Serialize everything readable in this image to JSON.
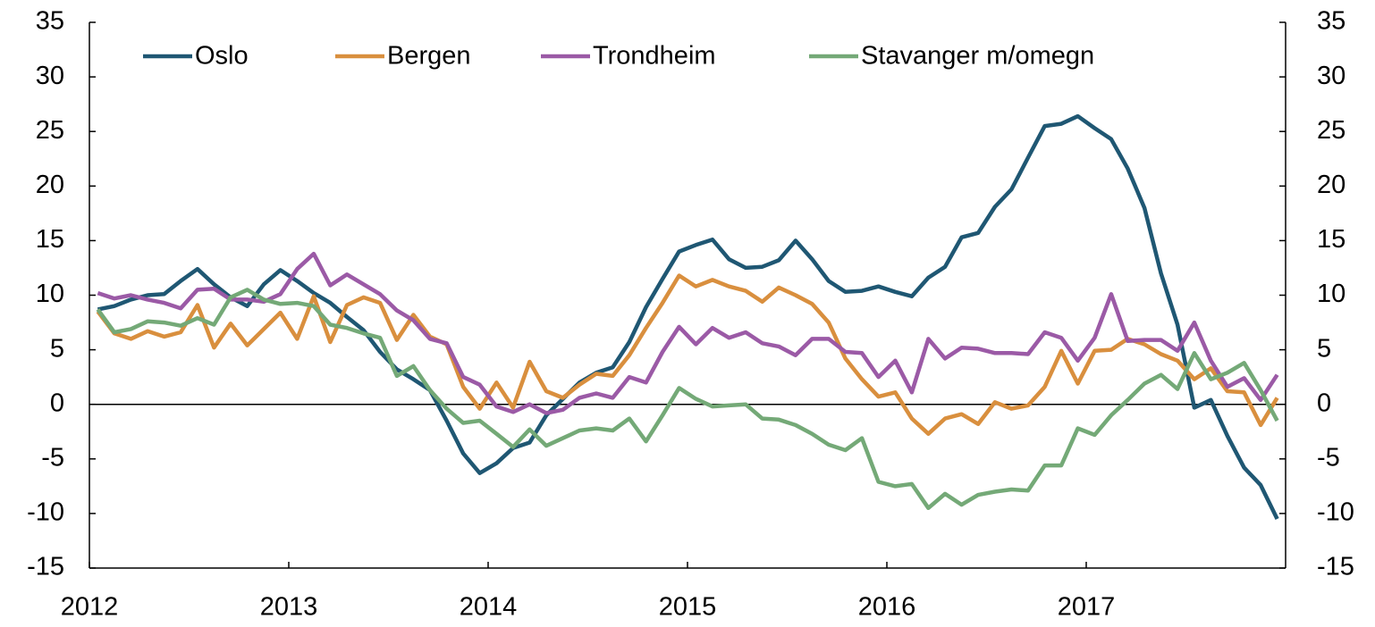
{
  "chart_data": {
    "type": "line",
    "x": [
      2012.042,
      2012.125,
      2012.208,
      2012.292,
      2012.375,
      2012.458,
      2012.542,
      2012.625,
      2012.708,
      2012.792,
      2012.875,
      2012.958,
      2013.042,
      2013.125,
      2013.208,
      2013.292,
      2013.375,
      2013.458,
      2013.542,
      2013.625,
      2013.708,
      2013.792,
      2013.875,
      2013.958,
      2014.042,
      2014.125,
      2014.208,
      2014.292,
      2014.375,
      2014.458,
      2014.542,
      2014.625,
      2014.708,
      2014.792,
      2014.875,
      2014.958,
      2015.042,
      2015.125,
      2015.208,
      2015.292,
      2015.375,
      2015.458,
      2015.542,
      2015.625,
      2015.708,
      2015.792,
      2015.875,
      2015.958,
      2016.042,
      2016.125,
      2016.208,
      2016.292,
      2016.375,
      2016.458,
      2016.542,
      2016.625,
      2016.708,
      2016.792,
      2016.875,
      2016.958,
      2017.042,
      2017.125,
      2017.208,
      2017.292,
      2017.375,
      2017.458,
      2017.542,
      2017.625,
      2017.708,
      2017.792,
      2017.875,
      2017.958
    ],
    "series": [
      {
        "name": "Oslo",
        "color": "#1f5773",
        "values": [
          8.7,
          9.0,
          9.6,
          10.0,
          10.1,
          11.3,
          12.4,
          11.0,
          9.8,
          9.0,
          11.0,
          12.3,
          11.3,
          10.2,
          9.3,
          8.0,
          6.8,
          4.8,
          3.2,
          2.3,
          1.3,
          -1.5,
          -4.5,
          -6.3,
          -5.4,
          -4.0,
          -3.5,
          -1.0,
          0.5,
          2.0,
          2.9,
          3.4,
          5.7,
          8.9,
          11.5,
          14.0,
          14.6,
          15.1,
          13.3,
          12.5,
          12.6,
          13.2,
          15.0,
          13.3,
          11.3,
          10.3,
          10.4,
          10.8,
          10.3,
          9.9,
          11.6,
          12.6,
          15.3,
          15.7,
          18.1,
          19.7,
          22.6,
          25.5,
          25.7,
          26.4,
          25.3,
          24.3,
          21.6,
          18.0,
          12.0,
          7.3,
          -0.3,
          0.4,
          -2.9,
          -5.8,
          -7.4,
          -10.5
        ]
      },
      {
        "name": "Bergen",
        "color": "#d98f3e",
        "values": [
          8.5,
          6.5,
          6.0,
          6.7,
          6.2,
          6.6,
          9.1,
          5.2,
          7.4,
          5.4,
          6.9,
          8.4,
          6.0,
          9.9,
          5.7,
          9.1,
          9.8,
          9.3,
          5.9,
          8.2,
          6.2,
          5.5,
          1.6,
          -0.4,
          2.0,
          -0.3,
          3.9,
          1.2,
          0.6,
          1.8,
          2.8,
          2.6,
          4.5,
          7.0,
          9.3,
          11.8,
          10.8,
          11.4,
          10.8,
          10.4,
          9.4,
          10.7,
          10.0,
          9.2,
          7.5,
          4.2,
          2.3,
          0.7,
          1.1,
          -1.3,
          -2.7,
          -1.3,
          -0.9,
          -1.8,
          0.2,
          -0.4,
          -0.1,
          1.6,
          4.9,
          1.9,
          4.9,
          5.0,
          6.0,
          5.5,
          4.6,
          4.0,
          2.3,
          3.3,
          1.2,
          1.1,
          -1.9,
          0.6
        ]
      },
      {
        "name": "Trondheim",
        "color": "#9b5aa6",
        "values": [
          10.2,
          9.7,
          10.0,
          9.6,
          9.3,
          8.8,
          10.5,
          10.6,
          9.6,
          9.6,
          9.4,
          10.1,
          12.4,
          13.8,
          10.9,
          11.9,
          11.0,
          10.1,
          8.6,
          7.7,
          6.0,
          5.6,
          2.5,
          1.8,
          -0.2,
          -0.7,
          0.0,
          -0.8,
          -0.5,
          0.6,
          1.0,
          0.6,
          2.5,
          2.0,
          4.8,
          7.1,
          5.5,
          7.0,
          6.1,
          6.6,
          5.6,
          5.3,
          4.5,
          6.0,
          6.0,
          4.8,
          4.7,
          2.5,
          4.0,
          1.1,
          6.0,
          4.2,
          5.2,
          5.1,
          4.7,
          4.7,
          4.6,
          6.6,
          6.1,
          4.0,
          6.1,
          10.1,
          5.8,
          5.9,
          5.9,
          4.9,
          7.5,
          4.0,
          1.6,
          2.4,
          0.4,
          2.7
        ]
      },
      {
        "name": "Stavanger m/omegn",
        "color": "#74a977",
        "values": [
          8.7,
          6.6,
          6.9,
          7.6,
          7.5,
          7.2,
          7.9,
          7.3,
          9.8,
          10.5,
          9.6,
          9.2,
          9.3,
          9.0,
          7.3,
          7.0,
          6.5,
          6.1,
          2.6,
          3.5,
          1.3,
          -0.4,
          -1.7,
          -1.5,
          -2.7,
          -3.9,
          -2.3,
          -3.8,
          -3.1,
          -2.4,
          -2.2,
          -2.4,
          -1.3,
          -3.4,
          -1.0,
          1.5,
          0.5,
          -0.2,
          -0.1,
          0.0,
          -1.3,
          -1.4,
          -1.9,
          -2.7,
          -3.7,
          -4.2,
          -3.1,
          -7.1,
          -7.5,
          -7.3,
          -9.5,
          -8.2,
          -9.2,
          -8.3,
          -8.0,
          -7.8,
          -7.9,
          -5.6,
          -5.6,
          -2.2,
          -2.8,
          -1.0,
          0.4,
          1.9,
          2.7,
          1.4,
          4.7,
          2.3,
          2.9,
          3.8,
          1.3,
          -1.5
        ]
      }
    ],
    "xlim": [
      2012,
      2018
    ],
    "xticks": [
      2012,
      2013,
      2014,
      2015,
      2016,
      2017
    ],
    "ylim": [
      -15,
      35
    ],
    "yticks": [
      -15,
      -10,
      -5,
      0,
      5,
      10,
      15,
      20,
      25,
      30,
      35
    ],
    "y2lim": [
      -15,
      35
    ],
    "y2ticks": [
      -15,
      -10,
      -5,
      0,
      5,
      10,
      15,
      20,
      25,
      30,
      35
    ],
    "legend": "upper left"
  }
}
